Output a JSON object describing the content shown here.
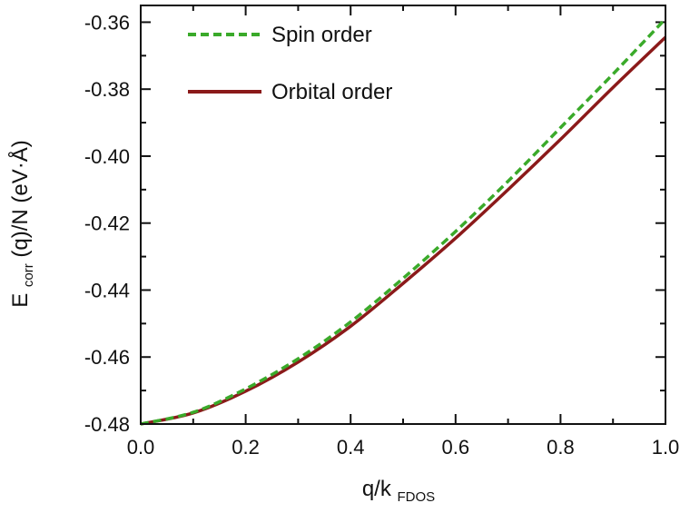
{
  "chart_data": {
    "type": "line",
    "xlabel": {
      "main": "q/k",
      "sub": "FDOS"
    },
    "ylabel": {
      "pre": "E",
      "sub": "corr",
      "post": "(q)/N  (eV·Å)"
    },
    "xlim": [
      0.0,
      1.0
    ],
    "ylim": [
      -0.48,
      -0.355
    ],
    "xticks": [
      "0.0",
      "0.2",
      "0.4",
      "0.6",
      "0.8",
      "1.0"
    ],
    "yticks": [
      "-0.48",
      "-0.46",
      "-0.44",
      "-0.42",
      "-0.40",
      "-0.38",
      "-0.36"
    ],
    "x_tick_values": [
      0.0,
      0.2,
      0.4,
      0.6,
      0.8,
      1.0
    ],
    "y_tick_values": [
      -0.48,
      -0.46,
      -0.44,
      -0.42,
      -0.4,
      -0.38,
      -0.36
    ],
    "legend_position": "top-left",
    "grid": false,
    "series": [
      {
        "name": "Spin order",
        "color": "#3aaa2a",
        "style": "dashed",
        "x": [
          0.0,
          0.1,
          0.2,
          0.3,
          0.4,
          0.5,
          0.6,
          0.7,
          0.8,
          0.9,
          1.0
        ],
        "y": [
          -0.48,
          -0.4765,
          -0.4695,
          -0.4605,
          -0.4495,
          -0.4365,
          -0.4225,
          -0.4075,
          -0.3915,
          -0.3755,
          -0.359
        ]
      },
      {
        "name": "Orbital order",
        "color": "#8b1a1a",
        "style": "solid",
        "x": [
          0.0,
          0.1,
          0.2,
          0.3,
          0.4,
          0.5,
          0.6,
          0.7,
          0.8,
          0.9,
          1.0
        ],
        "y": [
          -0.48,
          -0.4767,
          -0.4702,
          -0.4615,
          -0.4508,
          -0.438,
          -0.4245,
          -0.41,
          -0.395,
          -0.3795,
          -0.3645
        ]
      }
    ]
  }
}
